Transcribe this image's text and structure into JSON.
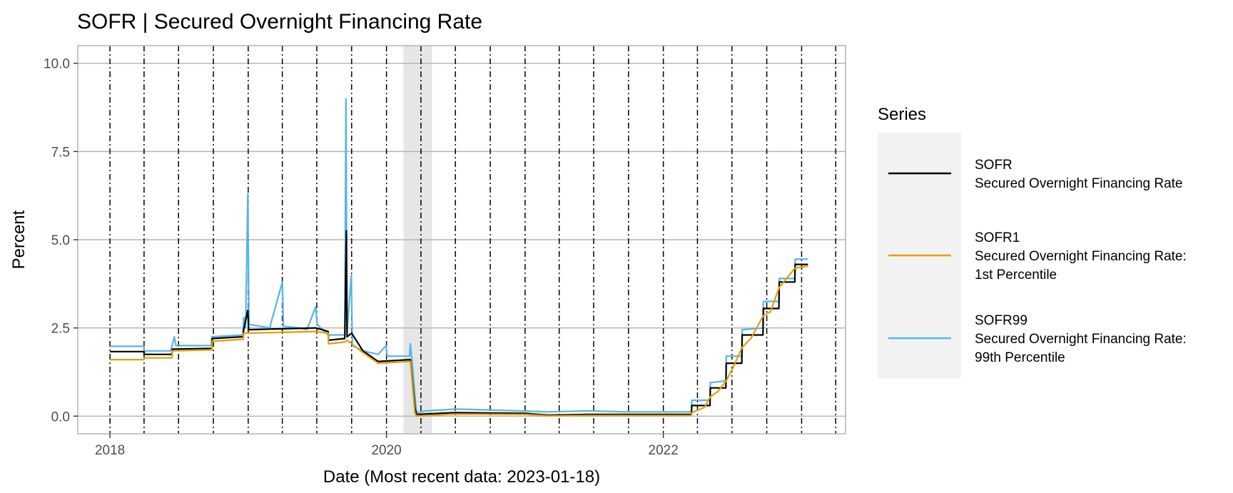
{
  "chart_data": {
    "type": "line",
    "title": "SOFR | Secured Overnight Financing Rate",
    "xlabel": "Date (Most recent data: 2023-01-18)",
    "ylabel": "Percent",
    "xlim": [
      "2017-10-08",
      "2023-04-27"
    ],
    "ylim": [
      -0.5,
      10.5
    ],
    "x_ticks": [
      {
        "date": "2018-01-01",
        "label": "2018"
      },
      {
        "date": "2020-01-01",
        "label": "2020"
      },
      {
        "date": "2022-01-01",
        "label": "2022"
      }
    ],
    "y_ticks": [
      {
        "value": 0,
        "label": "0.0"
      },
      {
        "value": 2.5,
        "label": "2.5"
      },
      {
        "value": 5,
        "label": "5.0"
      },
      {
        "value": 7.5,
        "label": "7.5"
      },
      {
        "value": 10,
        "label": "10.0"
      }
    ],
    "grid": true,
    "legend_position": "right",
    "legend": {
      "title": "Series",
      "items": [
        {
          "series": "SOFR",
          "lines": [
            "SOFR",
            "Secured Overnight Financing Rate"
          ],
          "color": "#000000"
        },
        {
          "series": "SOFR1",
          "lines": [
            "SOFR1",
            "Secured Overnight Financing Rate:",
            "1st Percentile"
          ],
          "color": "#E69F00"
        },
        {
          "series": "SOFR99",
          "lines": [
            "SOFR99",
            "Secured Overnight Financing Rate:",
            "99th Percentile"
          ],
          "color": "#56B4E9"
        }
      ]
    },
    "recession_shading": {
      "start": "2020-02-15",
      "end": "2020-04-30",
      "color": "#e6e6e6"
    },
    "vertical_dash_lines": [
      "2018-01-01",
      "2018-04-01",
      "2018-07-01",
      "2018-10-01",
      "2019-01-01",
      "2019-04-01",
      "2019-07-01",
      "2019-10-01",
      "2020-01-01",
      "2020-04-01",
      "2020-07-01",
      "2020-10-01",
      "2021-01-01",
      "2021-04-01",
      "2021-07-01",
      "2021-10-01",
      "2022-01-01",
      "2022-04-01",
      "2022-07-01",
      "2022-10-01",
      "2023-01-01",
      "2023-04-01"
    ],
    "series": [
      {
        "name": "SOFR99",
        "color": "#56B4E9",
        "points": [
          [
            "2018-01-01",
            1.98
          ],
          [
            "2018-04-01",
            1.98
          ],
          [
            "2018-04-01",
            1.85
          ],
          [
            "2018-06-10",
            1.85
          ],
          [
            "2018-06-14",
            2.0
          ],
          [
            "2018-06-20",
            2.25
          ],
          [
            "2018-06-24",
            2.0
          ],
          [
            "2018-09-25",
            2.0
          ],
          [
            "2018-09-27",
            2.25
          ],
          [
            "2018-12-18",
            2.3
          ],
          [
            "2018-12-20",
            2.8
          ],
          [
            "2018-12-25",
            2.5
          ],
          [
            "2018-12-31",
            6.3
          ],
          [
            "2019-01-03",
            2.6
          ],
          [
            "2019-02-28",
            2.5
          ],
          [
            "2019-03-01",
            2.6
          ],
          [
            "2019-04-01",
            3.8
          ],
          [
            "2019-04-04",
            2.55
          ],
          [
            "2019-05-15",
            2.5
          ],
          [
            "2019-06-05",
            2.45
          ],
          [
            "2019-06-28",
            3.1
          ],
          [
            "2019-07-02",
            2.6
          ],
          [
            "2019-07-31",
            2.3
          ],
          [
            "2019-09-13",
            2.3
          ],
          [
            "2019-09-16",
            9.0
          ],
          [
            "2019-09-19",
            2.4
          ],
          [
            "2019-09-30",
            4.0
          ],
          [
            "2019-10-03",
            2.0
          ],
          [
            "2019-10-31",
            1.85
          ],
          [
            "2019-12-10",
            1.75
          ],
          [
            "2019-12-31",
            2.0
          ],
          [
            "2020-01-03",
            1.7
          ],
          [
            "2020-03-02",
            1.7
          ],
          [
            "2020-03-04",
            2.05
          ],
          [
            "2020-03-10",
            1.4
          ],
          [
            "2020-03-16",
            0.6
          ],
          [
            "2020-03-20",
            0.1
          ],
          [
            "2020-04-15",
            0.15
          ],
          [
            "2020-06-30",
            0.2
          ],
          [
            "2020-09-15",
            0.18
          ],
          [
            "2021-03-01",
            0.12
          ],
          [
            "2021-06-16",
            0.15
          ],
          [
            "2021-10-01",
            0.12
          ],
          [
            "2022-03-16",
            0.12
          ],
          [
            "2022-03-17",
            0.45
          ],
          [
            "2022-05-04",
            0.45
          ],
          [
            "2022-05-05",
            0.95
          ],
          [
            "2022-06-15",
            1.0
          ],
          [
            "2022-06-16",
            1.7
          ],
          [
            "2022-07-27",
            1.7
          ],
          [
            "2022-07-28",
            2.45
          ],
          [
            "2022-09-21",
            2.5
          ],
          [
            "2022-09-22",
            3.25
          ],
          [
            "2022-11-02",
            3.25
          ],
          [
            "2022-11-03",
            3.9
          ],
          [
            "2022-12-14",
            3.9
          ],
          [
            "2022-12-15",
            4.45
          ],
          [
            "2023-01-18",
            4.45
          ]
        ]
      },
      {
        "name": "SOFR",
        "color": "#000000",
        "points": [
          [
            "2018-01-01",
            1.83
          ],
          [
            "2018-04-01",
            1.83
          ],
          [
            "2018-04-01",
            1.75
          ],
          [
            "2018-06-14",
            1.75
          ],
          [
            "2018-06-15",
            1.9
          ],
          [
            "2018-09-27",
            1.92
          ],
          [
            "2018-09-28",
            2.2
          ],
          [
            "2018-12-19",
            2.25
          ],
          [
            "2018-12-20",
            2.45
          ],
          [
            "2018-12-31",
            3.0
          ],
          [
            "2019-01-02",
            2.45
          ],
          [
            "2019-06-28",
            2.5
          ],
          [
            "2019-07-31",
            2.4
          ],
          [
            "2019-08-01",
            2.15
          ],
          [
            "2019-09-13",
            2.2
          ],
          [
            "2019-09-17",
            5.25
          ],
          [
            "2019-09-19",
            2.25
          ],
          [
            "2019-10-01",
            2.35
          ],
          [
            "2019-10-31",
            1.85
          ],
          [
            "2019-12-10",
            1.55
          ],
          [
            "2020-03-02",
            1.6
          ],
          [
            "2020-03-04",
            1.6
          ],
          [
            "2020-03-16",
            0.26
          ],
          [
            "2020-03-20",
            0.05
          ],
          [
            "2020-06-30",
            0.1
          ],
          [
            "2020-12-31",
            0.08
          ],
          [
            "2021-03-01",
            0.03
          ],
          [
            "2021-06-16",
            0.05
          ],
          [
            "2022-03-16",
            0.05
          ],
          [
            "2022-03-17",
            0.3
          ],
          [
            "2022-05-04",
            0.3
          ],
          [
            "2022-05-05",
            0.8
          ],
          [
            "2022-06-15",
            0.8
          ],
          [
            "2022-06-16",
            1.5
          ],
          [
            "2022-07-27",
            1.5
          ],
          [
            "2022-07-28",
            2.3
          ],
          [
            "2022-09-21",
            2.3
          ],
          [
            "2022-09-22",
            3.05
          ],
          [
            "2022-11-02",
            3.05
          ],
          [
            "2022-11-03",
            3.8
          ],
          [
            "2022-12-14",
            3.8
          ],
          [
            "2022-12-15",
            4.3
          ],
          [
            "2023-01-18",
            4.3
          ]
        ]
      },
      {
        "name": "SOFR1",
        "color": "#E69F00",
        "points": [
          [
            "2018-01-01",
            1.6
          ],
          [
            "2018-04-01",
            1.6
          ],
          [
            "2018-04-01",
            1.65
          ],
          [
            "2018-06-14",
            1.65
          ],
          [
            "2018-06-15",
            1.85
          ],
          [
            "2018-09-27",
            1.88
          ],
          [
            "2018-09-28",
            2.12
          ],
          [
            "2018-12-19",
            2.18
          ],
          [
            "2018-12-20",
            2.35
          ],
          [
            "2019-06-28",
            2.4
          ],
          [
            "2019-07-31",
            2.35
          ],
          [
            "2019-08-01",
            2.05
          ],
          [
            "2019-09-13",
            2.1
          ],
          [
            "2019-09-19",
            2.15
          ],
          [
            "2019-10-31",
            1.8
          ],
          [
            "2019-12-10",
            1.5
          ],
          [
            "2020-03-04",
            1.55
          ],
          [
            "2020-03-16",
            0.1
          ],
          [
            "2020-03-20",
            0.0
          ],
          [
            "2020-06-30",
            0.06
          ],
          [
            "2020-12-31",
            0.05
          ],
          [
            "2021-03-01",
            0.01
          ],
          [
            "2021-06-16",
            0.02
          ],
          [
            "2022-03-16",
            0.02
          ],
          [
            "2022-03-17",
            0.1
          ],
          [
            "2022-04-20",
            0.25
          ],
          [
            "2022-05-05",
            0.55
          ],
          [
            "2022-05-25",
            0.7
          ],
          [
            "2022-06-16",
            1.0
          ],
          [
            "2022-07-05",
            1.4
          ],
          [
            "2022-07-28",
            1.95
          ],
          [
            "2022-08-20",
            2.2
          ],
          [
            "2022-09-22",
            2.85
          ],
          [
            "2022-10-10",
            2.95
          ],
          [
            "2022-11-03",
            3.65
          ],
          [
            "2022-12-15",
            4.2
          ],
          [
            "2023-01-18",
            4.25
          ]
        ]
      }
    ]
  }
}
